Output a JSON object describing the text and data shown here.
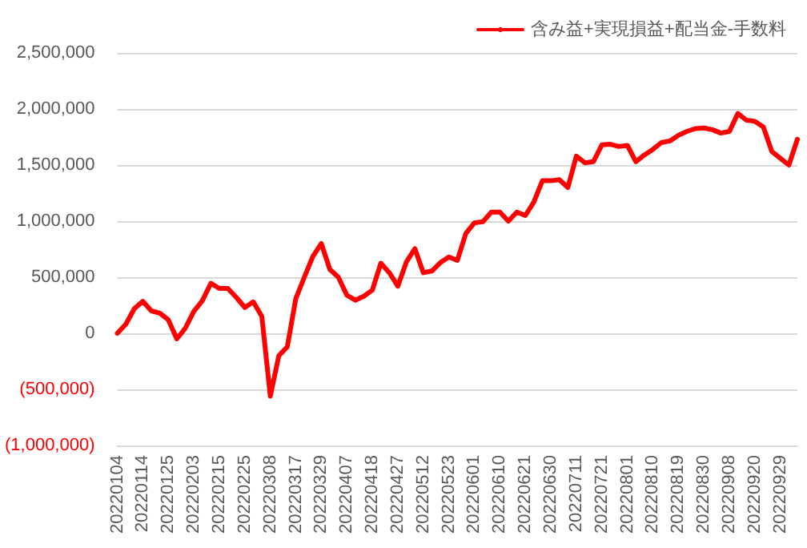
{
  "chart_data": {
    "type": "line",
    "categories": [
      "20220104",
      null,
      null,
      "20220114",
      null,
      null,
      "20220125",
      null,
      null,
      "20220203",
      null,
      null,
      "20220215",
      null,
      null,
      "20220225",
      null,
      null,
      "20220308",
      null,
      null,
      "20220317",
      null,
      null,
      "20220329",
      null,
      null,
      "20220407",
      null,
      null,
      "20220418",
      null,
      null,
      "20220427",
      null,
      null,
      "20220512",
      null,
      null,
      "20220523",
      null,
      null,
      "20220601",
      null,
      null,
      "20220610",
      null,
      null,
      "20220621",
      null,
      null,
      "20220630",
      null,
      null,
      "20220711",
      null,
      null,
      "20220721",
      null,
      null,
      "20220801",
      null,
      null,
      "20220810",
      null,
      null,
      "20220819",
      null,
      null,
      "20220830",
      null,
      null,
      "20220908",
      null,
      null,
      "20220920",
      null,
      null,
      "20220929",
      null,
      null
    ],
    "series": [
      {
        "name": "含み益+実現損益+配当金-手数料",
        "color": "#ff0000",
        "values": [
          0,
          80000,
          220000,
          285000,
          200000,
          180000,
          120000,
          -50000,
          45000,
          195000,
          290000,
          445000,
          400000,
          400000,
          320000,
          230000,
          280000,
          150000,
          -560000,
          -200000,
          -120000,
          310000,
          500000,
          685000,
          800000,
          570000,
          500000,
          340000,
          295000,
          330000,
          385000,
          625000,
          540000,
          420000,
          635000,
          755000,
          540000,
          555000,
          630000,
          680000,
          650000,
          890000,
          985000,
          995000,
          1080000,
          1080000,
          1000000,
          1080000,
          1050000,
          1170000,
          1360000,
          1360000,
          1370000,
          1300000,
          1580000,
          1520000,
          1530000,
          1680000,
          1685000,
          1665000,
          1675000,
          1530000,
          1590000,
          1640000,
          1700000,
          1715000,
          1765000,
          1800000,
          1825000,
          1830000,
          1815000,
          1785000,
          1800000,
          1960000,
          1900000,
          1890000,
          1840000,
          1620000,
          1560000,
          1500000,
          1730000
        ]
      }
    ],
    "ylim": [
      -1000000,
      2500000
    ],
    "yticks": [
      {
        "value": -1000000,
        "label": "(1,000,000)"
      },
      {
        "value": -500000,
        "label": "(500,000)"
      },
      {
        "value": 0,
        "label": "0"
      },
      {
        "value": 500000,
        "label": "500,000"
      },
      {
        "value": 1000000,
        "label": "1,000,000"
      },
      {
        "value": 1500000,
        "label": "1,500,000"
      },
      {
        "value": 2000000,
        "label": "2,000,000"
      },
      {
        "value": 2500000,
        "label": "2,500,000"
      }
    ],
    "grid": "y",
    "legend": "top right",
    "marker": "none",
    "line_style": "solid"
  }
}
